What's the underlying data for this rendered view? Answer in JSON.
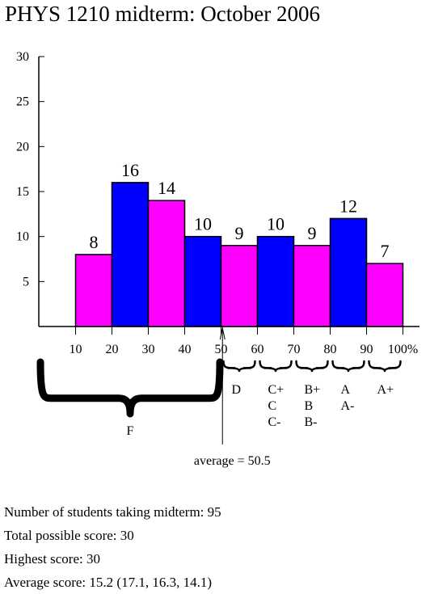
{
  "title": "PHYS 1210 midterm: October 2006",
  "chart_data": {
    "type": "bar",
    "x_ticks": [
      "10",
      "20",
      "30",
      "40",
      "50",
      "60",
      "70",
      "80",
      "90",
      "100%"
    ],
    "bins": [
      [
        10,
        20
      ],
      [
        20,
        30
      ],
      [
        30,
        40
      ],
      [
        40,
        50
      ],
      [
        50,
        60
      ],
      [
        60,
        70
      ],
      [
        70,
        80
      ],
      [
        80,
        90
      ],
      [
        90,
        100
      ]
    ],
    "values": [
      8,
      16,
      14,
      10,
      9,
      10,
      9,
      12,
      7
    ],
    "bar_colors": [
      "#ff00ff",
      "#0000ff",
      "#ff00ff",
      "#0000ff",
      "#ff00ff",
      "#0000ff",
      "#ff00ff",
      "#0000ff",
      "#ff00ff"
    ],
    "y_ticks": [
      5,
      10,
      15,
      20,
      25,
      30
    ],
    "ylim": [
      0,
      30
    ],
    "xlim": [
      0,
      105
    ],
    "grid": false,
    "grade_groups": [
      {
        "range": [
          50,
          60
        ],
        "labels": [
          "D"
        ]
      },
      {
        "range": [
          60,
          70
        ],
        "labels": [
          "C+",
          "C",
          "C-"
        ]
      },
      {
        "range": [
          70,
          80
        ],
        "labels": [
          "B+",
          "B",
          "B-"
        ]
      },
      {
        "range": [
          80,
          90
        ],
        "labels": [
          "A",
          "A-"
        ]
      },
      {
        "range": [
          90,
          100
        ],
        "labels": [
          "A+"
        ]
      }
    ],
    "fail_group": {
      "range": [
        0,
        50
      ],
      "label": "F"
    },
    "average": {
      "value": 50.5,
      "label": "average = 50.5"
    }
  },
  "stats": [
    "Number of students taking midterm: 95",
    "Total possible score: 30",
    "Highest score: 30",
    "Average score: 15.2 (17.1, 16.3, 14.1)"
  ]
}
